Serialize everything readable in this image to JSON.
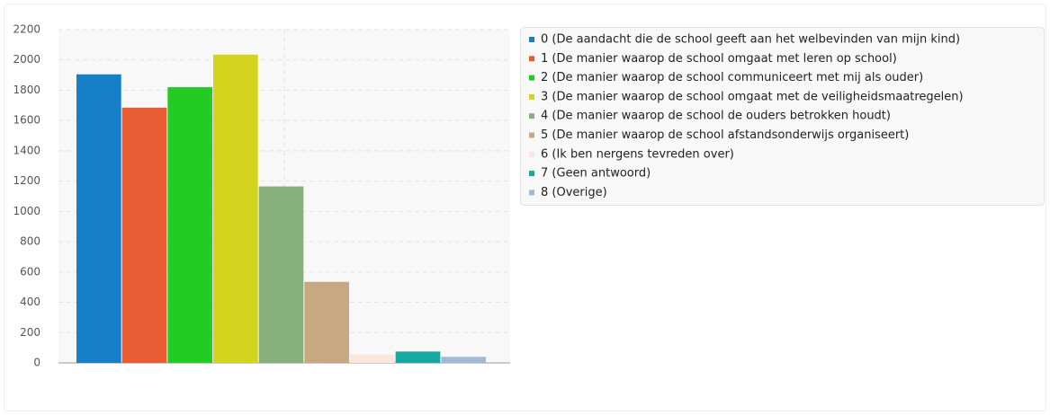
{
  "chart_data": {
    "type": "bar",
    "categories": [
      "0 (De aandacht die de school geeft aan het welbevinden van mijn kind)",
      "1 (De manier waarop de school omgaat met leren op school)",
      "2 (De manier waarop de school communiceert met mij als ouder)",
      "3 (De manier waarop de school omgaat met de veiligheidsmaatregelen)",
      "4 (De manier waarop de school de ouders betrokken houdt)",
      "5 (De manier waarop de school afstandsonderwijs organiseert)",
      "6 (Ik ben nergens tevreden over)",
      "7 (Geen antwoord)",
      "8 (Overige)"
    ],
    "values": [
      1905,
      1685,
      1820,
      2035,
      1165,
      535,
      55,
      75,
      40
    ],
    "colors": [
      "#1580c8",
      "#e85c33",
      "#22cc22",
      "#d4d41e",
      "#88b07e",
      "#c8a880",
      "#fae6dc",
      "#17a9a0",
      "#a2b9d6"
    ],
    "ylim": [
      0,
      2200
    ],
    "yticks": [
      0,
      200,
      400,
      600,
      800,
      1000,
      1200,
      1400,
      1600,
      1800,
      2000,
      2200
    ],
    "grid": true,
    "legend": "right"
  }
}
